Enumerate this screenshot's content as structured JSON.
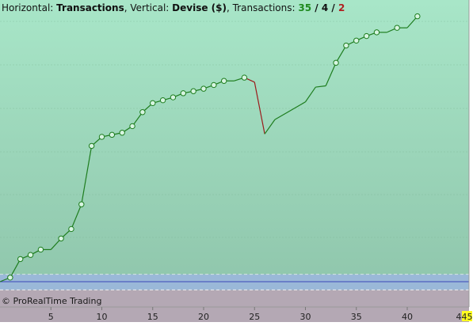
{
  "header": {
    "horizontal_label": "Horizontal:",
    "horizontal_value": "Transactions",
    "vertical_label": "Vertical:",
    "vertical_value": "Devise ($)",
    "transactions_label": "Transactions:",
    "wins": "35",
    "sep1": " / ",
    "neutral": "4",
    "sep2": " / ",
    "losses": "2"
  },
  "credit": "© ProRealTime Trading",
  "colors": {
    "win": "#1f8a1f",
    "neutral": "#111111",
    "loss": "#b02020",
    "equity_line": "#1e7d1e",
    "drawdown_segment": "#9b1a1a",
    "marker_fill": "#d8f5e2",
    "zero_line": "#3a46b8",
    "background_top": "#a8e6c8",
    "background_bottom": "#8ec4aa",
    "band_blue": "#9ab8d8",
    "band_mauve": "#b4a8b4",
    "badge_fill": "#ffff20"
  },
  "chart_data": {
    "type": "line",
    "xlabel": "",
    "ylabel": "",
    "x_ticks": [
      5,
      10,
      15,
      20,
      25,
      30,
      35,
      40
    ],
    "x_end_labels": [
      "4",
      "45"
    ],
    "xlim": [
      0,
      45
    ],
    "ylim": [
      -11,
      68
    ],
    "grid": true,
    "series": [
      {
        "values": [
          {
            "x": 0,
            "y": 0.0
          },
          {
            "x": 1,
            "y": 1.0
          },
          {
            "x": 2,
            "y": 5.5
          },
          {
            "x": 3,
            "y": 6.5
          },
          {
            "x": 4,
            "y": 7.8
          },
          {
            "x": 5,
            "y": 7.8
          },
          {
            "x": 6,
            "y": 10.5
          },
          {
            "x": 7,
            "y": 12.8
          },
          {
            "x": 8,
            "y": 18.8
          },
          {
            "x": 9,
            "y": 33.0
          },
          {
            "x": 10,
            "y": 35.2
          },
          {
            "x": 11,
            "y": 35.7
          },
          {
            "x": 12,
            "y": 36.2
          },
          {
            "x": 13,
            "y": 37.8
          },
          {
            "x": 14,
            "y": 41.2
          },
          {
            "x": 15,
            "y": 43.4
          },
          {
            "x": 16,
            "y": 44.1
          },
          {
            "x": 17,
            "y": 44.8
          },
          {
            "x": 18,
            "y": 45.8
          },
          {
            "x": 19,
            "y": 46.3
          },
          {
            "x": 20,
            "y": 46.9
          },
          {
            "x": 21,
            "y": 47.8
          },
          {
            "x": 22,
            "y": 48.8
          },
          {
            "x": 23,
            "y": 48.8
          },
          {
            "x": 24,
            "y": 49.6
          },
          {
            "x": 25,
            "y": 48.5
          },
          {
            "x": 26,
            "y": 35.9
          },
          {
            "x": 27,
            "y": 39.4
          },
          {
            "x": 30,
            "y": 43.7
          },
          {
            "x": 31,
            "y": 47.3
          },
          {
            "x": 32,
            "y": 47.6
          },
          {
            "x": 33,
            "y": 53.2
          },
          {
            "x": 34,
            "y": 57.4
          },
          {
            "x": 35,
            "y": 58.6
          },
          {
            "x": 36,
            "y": 59.7
          },
          {
            "x": 37,
            "y": 60.6
          },
          {
            "x": 38,
            "y": 60.6
          },
          {
            "x": 39,
            "y": 61.7
          },
          {
            "x": 40,
            "y": 61.7
          },
          {
            "x": 41,
            "y": 64.5
          }
        ],
        "markers_at_x": [
          1,
          2,
          3,
          4,
          6,
          7,
          8,
          9,
          10,
          11,
          12,
          13,
          14,
          15,
          16,
          17,
          18,
          19,
          20,
          21,
          22,
          24,
          33,
          34,
          35,
          36,
          37,
          39,
          41
        ],
        "drawdown_from_x": 24,
        "drawdown_to_x": 26
      }
    ],
    "reference_bands": [
      {
        "name": "blue band",
        "y_from": -2.0,
        "y_to": 1.8
      },
      {
        "name": "mauve band",
        "y_from": -10.6,
        "y_to": -2.0
      }
    ],
    "zero_line_y": 0
  }
}
